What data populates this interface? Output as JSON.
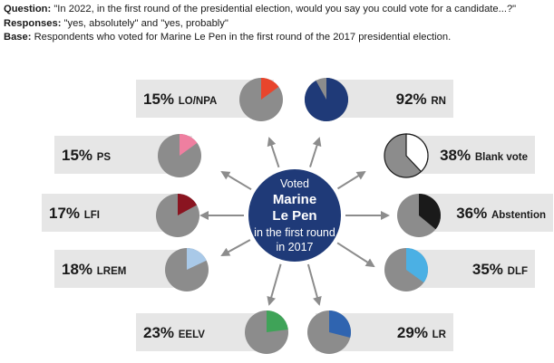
{
  "header": {
    "question_label": "Question:",
    "question_text": " \"In 2022, in the first round of the presidential election, would you say you could vote for a candidate...?\"",
    "responses_label": "Responses:",
    "responses_text": " \"yes, absolutely\" and \"yes, probably\"",
    "base_label": "Base:",
    "base_text": " Respondents who voted for Marine Le Pen in the first round of the 2017 presidential election."
  },
  "center": {
    "line1": "Voted",
    "line2": "Marine",
    "line3": "Le Pen",
    "line4": "in the first round",
    "line5": "in 2017"
  },
  "colors": {
    "box": "#e6e6e6",
    "pie_rest": "#8c8c8c",
    "center_circle": "#1f3a78",
    "arrow": "#8c8c8c"
  },
  "chart_data": {
    "type": "pie",
    "title": "",
    "unit": "%",
    "series": [
      {
        "label": "LO/NPA",
        "value": 15,
        "color": "#e8452c"
      },
      {
        "label": "RN",
        "value": 92,
        "color": "#1f3a78"
      },
      {
        "label": "PS",
        "value": 15,
        "color": "#ef7fa0"
      },
      {
        "label": "Blank vote",
        "value": 38,
        "color": "#ffffff"
      },
      {
        "label": "LFI",
        "value": 17,
        "color": "#8a1420"
      },
      {
        "label": "Abstention",
        "value": 36,
        "color": "#1a1a1a"
      },
      {
        "label": "LREM",
        "value": 18,
        "color": "#a9c9e8"
      },
      {
        "label": "DLF",
        "value": 35,
        "color": "#4bb0e4"
      },
      {
        "label": "EELV",
        "value": 23,
        "color": "#3fa358"
      },
      {
        "label": "LR",
        "value": 29,
        "color": "#2f64b0"
      }
    ]
  }
}
